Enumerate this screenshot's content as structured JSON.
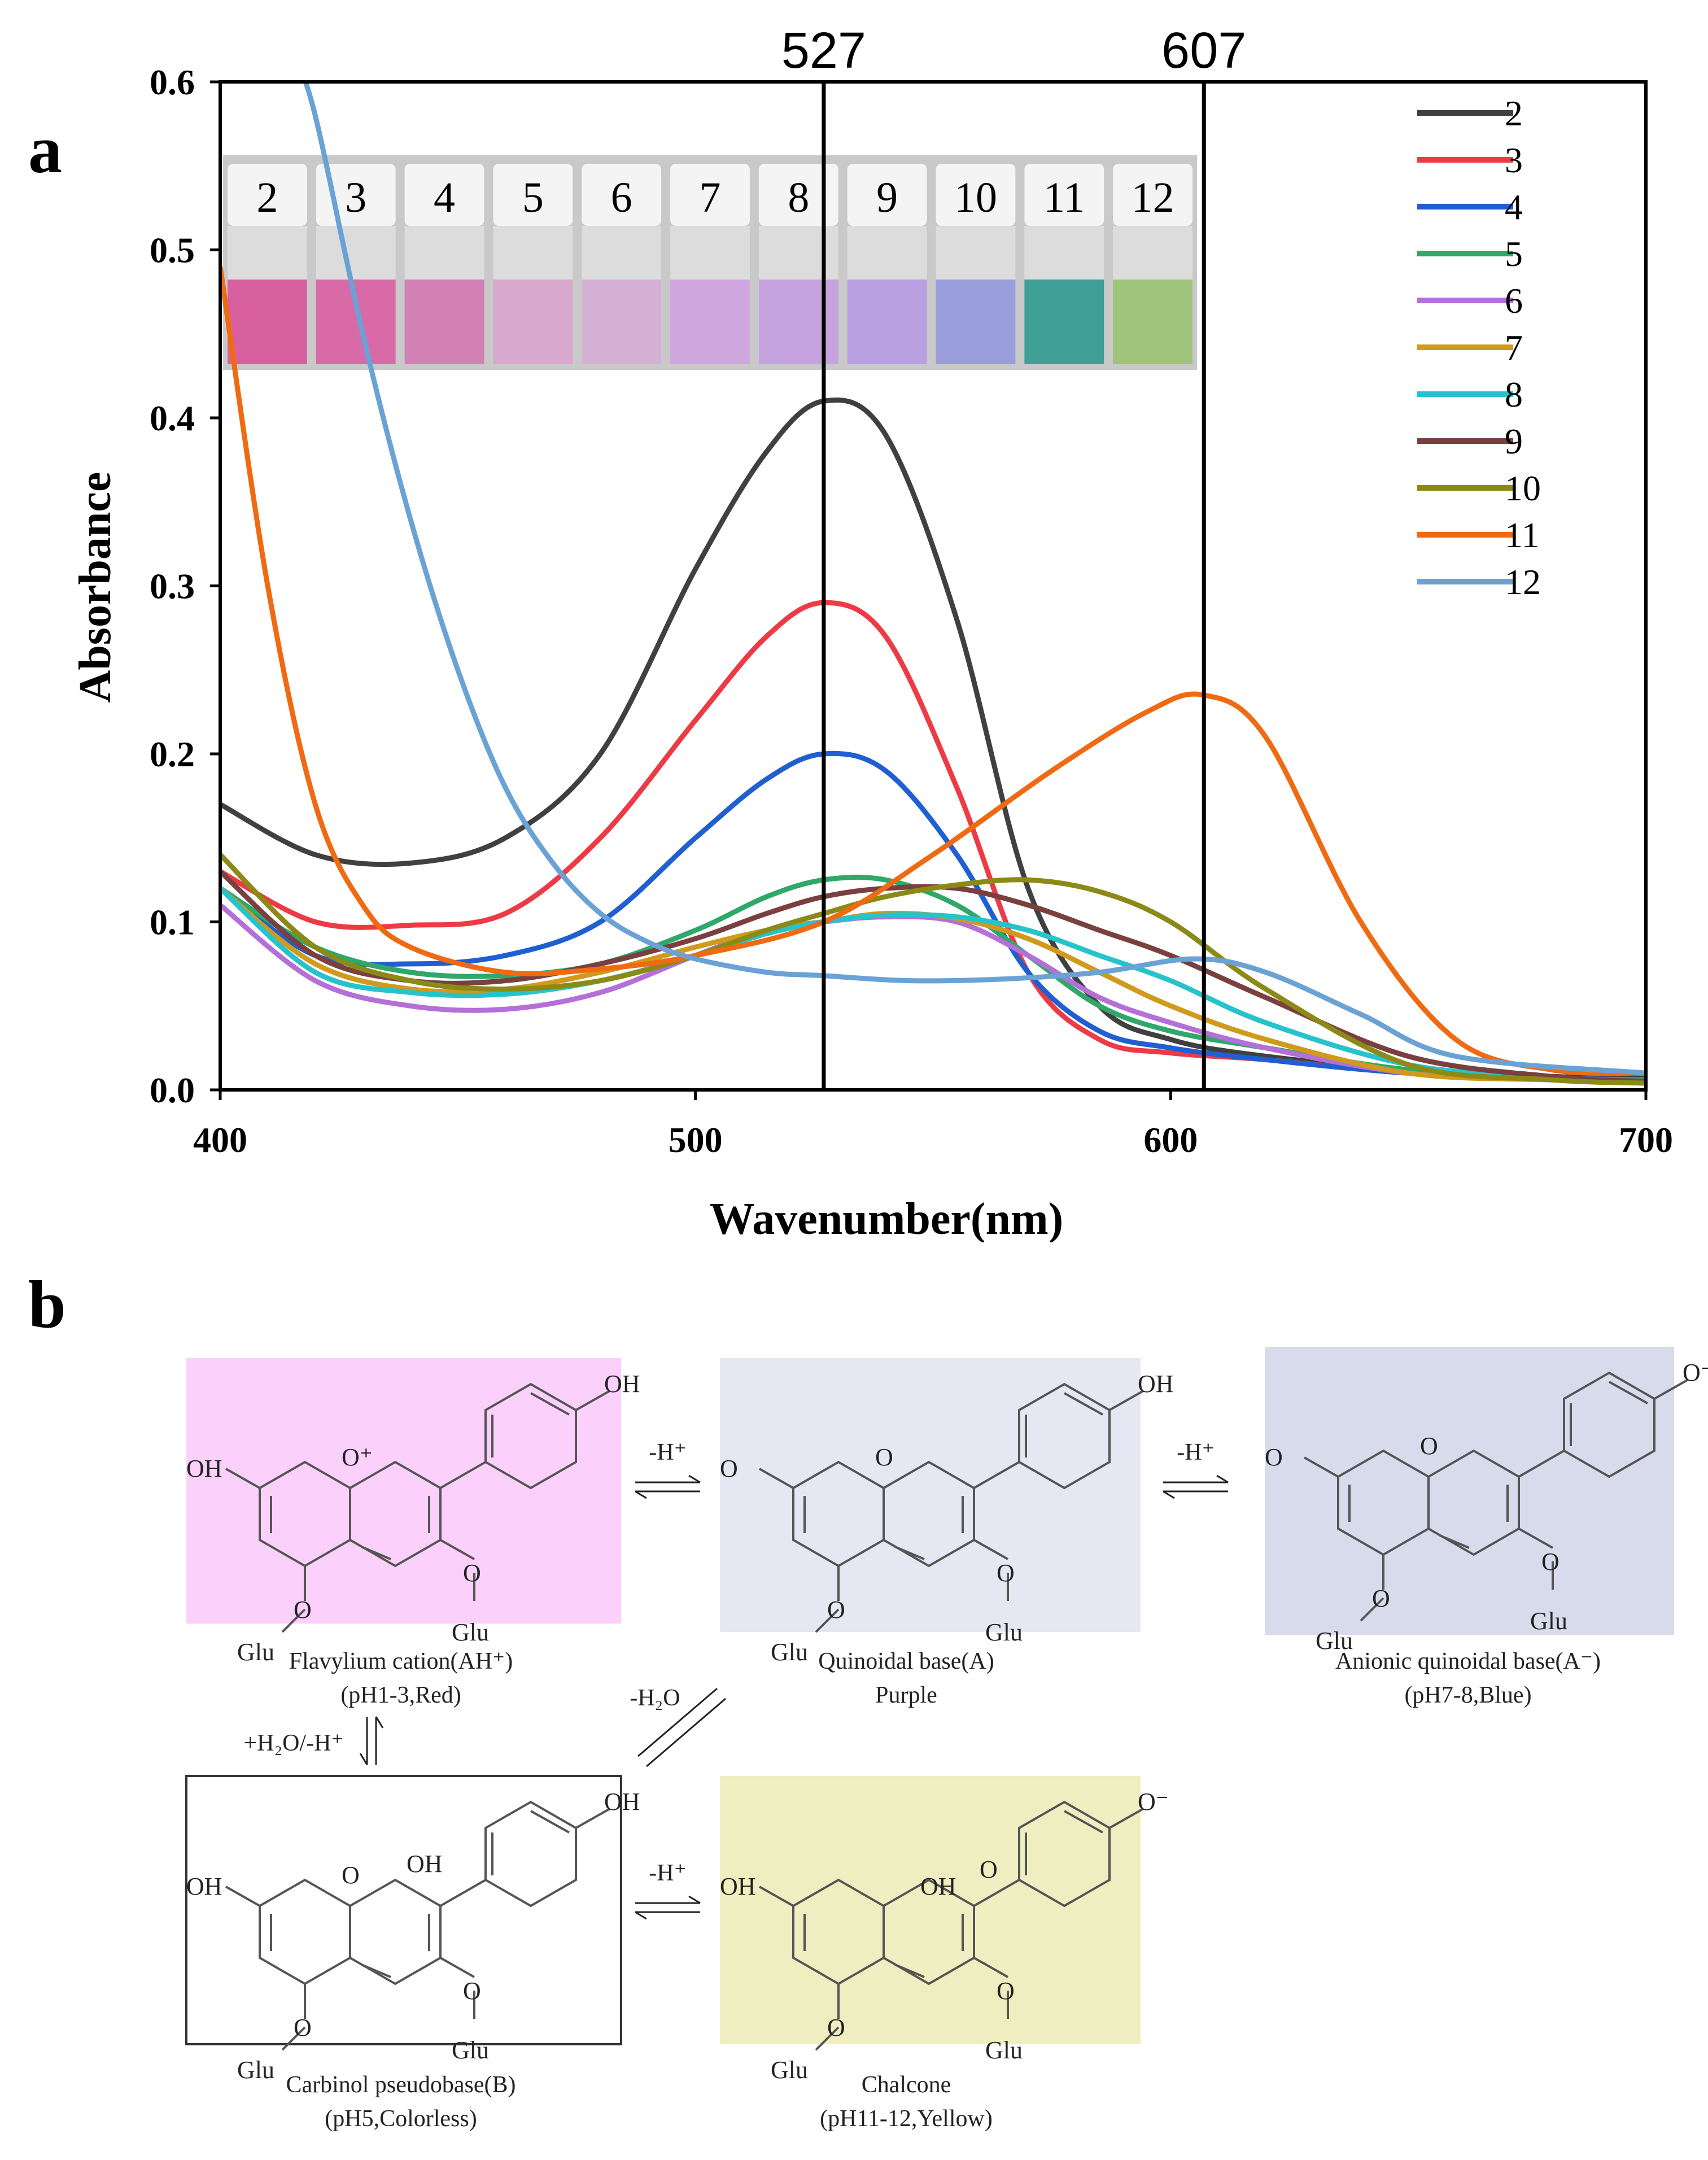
{
  "panels": {
    "a": "a",
    "b": "b"
  },
  "chart_data": {
    "type": "line",
    "title": "",
    "xlabel": "Wavenumber(nm)",
    "ylabel": "Absorbance",
    "xlim": [
      400,
      700
    ],
    "ylim": [
      0,
      0.6
    ],
    "xticks": [
      400,
      500,
      600,
      700
    ],
    "xtick_labels": [
      "400",
      "500",
      "600",
      "700"
    ],
    "yticks": [
      0,
      0.1,
      0.2,
      0.3,
      0.4,
      0.5,
      0.6
    ],
    "ytick_labels": [
      "0.0",
      "0.1",
      "0.2",
      "0.3",
      "0.4",
      "0.5",
      "0.6"
    ],
    "grid": false,
    "legend_position": "top-right",
    "reference_lines": [
      {
        "x": 527,
        "label": "527"
      },
      {
        "x": 607,
        "label": "607"
      }
    ],
    "inset_vials": {
      "labels": [
        "2",
        "3",
        "4",
        "5",
        "6",
        "7",
        "8",
        "9",
        "10",
        "11",
        "12"
      ],
      "colors": [
        "#d9609f",
        "#d96aa8",
        "#d281b5",
        "#d9a8cd",
        "#d6b1d6",
        "#cfa6de",
        "#c6a3de",
        "#b9a0e0",
        "#9a9fdc",
        "#3f9f97",
        "#9fc37b"
      ]
    },
    "series": [
      {
        "name": "2",
        "color": "#404040",
        "x": [
          400,
          420,
          440,
          460,
          480,
          500,
          515,
          527,
          540,
          555,
          570,
          585,
          600,
          620,
          650,
          680,
          700
        ],
        "y": [
          0.17,
          0.14,
          0.135,
          0.15,
          0.2,
          0.31,
          0.38,
          0.41,
          0.39,
          0.28,
          0.12,
          0.05,
          0.03,
          0.02,
          0.012,
          0.008,
          0.007
        ]
      },
      {
        "name": "3",
        "color": "#ee3a45",
        "x": [
          400,
          420,
          440,
          460,
          480,
          500,
          515,
          527,
          540,
          555,
          570,
          585,
          600,
          620,
          650,
          680,
          700
        ],
        "y": [
          0.13,
          0.1,
          0.098,
          0.105,
          0.15,
          0.22,
          0.27,
          0.29,
          0.27,
          0.18,
          0.07,
          0.03,
          0.022,
          0.018,
          0.01,
          0.007,
          0.006
        ]
      },
      {
        "name": "4",
        "color": "#1f5fd1",
        "x": [
          400,
          420,
          440,
          460,
          480,
          500,
          515,
          527,
          540,
          555,
          570,
          585,
          600,
          620,
          650,
          680,
          700
        ],
        "y": [
          0.12,
          0.08,
          0.075,
          0.08,
          0.1,
          0.15,
          0.185,
          0.2,
          0.19,
          0.14,
          0.07,
          0.035,
          0.025,
          0.018,
          0.01,
          0.007,
          0.006
        ]
      },
      {
        "name": "5",
        "color": "#2fa86a",
        "x": [
          400,
          420,
          440,
          460,
          480,
          500,
          515,
          527,
          540,
          555,
          570,
          585,
          600,
          620,
          650,
          680,
          700
        ],
        "y": [
          0.12,
          0.085,
          0.07,
          0.068,
          0.075,
          0.095,
          0.115,
          0.125,
          0.125,
          0.11,
          0.08,
          0.05,
          0.035,
          0.025,
          0.012,
          0.007,
          0.006
        ]
      },
      {
        "name": "6",
        "color": "#b46fd8",
        "x": [
          400,
          420,
          440,
          460,
          480,
          500,
          515,
          527,
          540,
          555,
          570,
          585,
          600,
          620,
          650,
          680,
          700
        ],
        "y": [
          0.11,
          0.065,
          0.05,
          0.048,
          0.058,
          0.08,
          0.095,
          0.1,
          0.103,
          0.1,
          0.08,
          0.055,
          0.04,
          0.025,
          0.01,
          0.006,
          0.005
        ]
      },
      {
        "name": "7",
        "color": "#d09a1c",
        "x": [
          400,
          420,
          440,
          460,
          480,
          500,
          515,
          527,
          540,
          555,
          570,
          585,
          600,
          620,
          650,
          680,
          700
        ],
        "y": [
          0.12,
          0.075,
          0.06,
          0.06,
          0.07,
          0.085,
          0.095,
          0.1,
          0.105,
          0.102,
          0.09,
          0.07,
          0.05,
          0.03,
          0.01,
          0.006,
          0.005
        ]
      },
      {
        "name": "8",
        "color": "#27c3cc",
        "x": [
          400,
          420,
          440,
          460,
          480,
          500,
          515,
          527,
          540,
          555,
          570,
          585,
          600,
          620,
          650,
          680,
          700
        ],
        "y": [
          0.12,
          0.07,
          0.058,
          0.057,
          0.065,
          0.08,
          0.093,
          0.1,
          0.104,
          0.103,
          0.095,
          0.08,
          0.065,
          0.04,
          0.015,
          0.007,
          0.005
        ]
      },
      {
        "name": "9",
        "color": "#7a3f3f",
        "x": [
          400,
          420,
          440,
          460,
          480,
          500,
          515,
          527,
          540,
          555,
          570,
          585,
          600,
          620,
          650,
          680,
          700
        ],
        "y": [
          0.13,
          0.08,
          0.065,
          0.065,
          0.075,
          0.09,
          0.105,
          0.115,
          0.12,
          0.12,
          0.11,
          0.095,
          0.08,
          0.055,
          0.02,
          0.008,
          0.005
        ]
      },
      {
        "name": "10",
        "color": "#8c8a16",
        "x": [
          400,
          420,
          440,
          460,
          480,
          500,
          515,
          527,
          540,
          555,
          570,
          585,
          600,
          620,
          650,
          680,
          700
        ],
        "y": [
          0.14,
          0.085,
          0.065,
          0.06,
          0.065,
          0.08,
          0.095,
          0.105,
          0.115,
          0.122,
          0.125,
          0.118,
          0.1,
          0.06,
          0.015,
          0.006,
          0.004
        ]
      },
      {
        "name": "11",
        "color": "#f06a12",
        "x": [
          400,
          410,
          420,
          430,
          440,
          460,
          480,
          500,
          527,
          550,
          575,
          595,
          607,
          620,
          640,
          660,
          680,
          700
        ],
        "y": [
          0.49,
          0.3,
          0.17,
          0.11,
          0.085,
          0.07,
          0.072,
          0.08,
          0.1,
          0.14,
          0.19,
          0.225,
          0.235,
          0.21,
          0.1,
          0.03,
          0.012,
          0.01
        ]
      },
      {
        "name": "12",
        "color": "#6aa2d6",
        "x": [
          415,
          420,
          430,
          440,
          450,
          460,
          470,
          480,
          490,
          500,
          515,
          527,
          545,
          565,
          585,
          605,
          620,
          640,
          660,
          700
        ],
        "y": [
          0.62,
          0.58,
          0.45,
          0.34,
          0.25,
          0.18,
          0.135,
          0.105,
          0.088,
          0.078,
          0.07,
          0.068,
          0.065,
          0.066,
          0.07,
          0.078,
          0.07,
          0.045,
          0.02,
          0.01
        ]
      }
    ]
  },
  "scheme": {
    "arrows": {
      "a_to_qa": "-H⁺",
      "qa_to_aqb": "-H⁺",
      "flav_to_carb": "+H₂O/-H⁺",
      "carb_to_qa": "-H₂O",
      "carb_to_chal": "-H⁺"
    },
    "species": [
      {
        "id": "flavylium",
        "name": "Flavylium cation(AH⁺)",
        "note": "(pH1-3,Red)",
        "color": "#fbd0fb",
        "labels": {
          "top_oh": "OH",
          "left_oh": "OH",
          "ring_o": "O⁺",
          "o3": "O",
          "o5": "O",
          "glu3": "Glu",
          "glu5": "Glu"
        }
      },
      {
        "id": "quinoidal",
        "name": "Quinoidal base(A)",
        "note": "Purple",
        "color": "#e6e7f2",
        "labels": {
          "top_oh": "OH",
          "left_oh": "O",
          "ring_o": "O",
          "o3": "O",
          "o5": "O",
          "glu3": "Glu",
          "glu5": "Glu"
        }
      },
      {
        "id": "anionic",
        "name": "Anionic quinoidal base(A⁻)",
        "note": "(pH7-8,Blue)",
        "color": "#d8dbec",
        "labels": {
          "top_oh": "O⁻",
          "left_oh": "O",
          "ring_o": "O",
          "o3": "O",
          "o5": "O",
          "glu3": "Glu",
          "glu5": "Glu"
        }
      },
      {
        "id": "carbinol",
        "name": "Carbinol pseudobase(B)",
        "note": "(pH5,Colorless)",
        "color": "#ffffff",
        "labels": {
          "top_oh": "OH",
          "left_oh": "OH",
          "ring_o": "O",
          "c2_oh": "OH",
          "o3": "O",
          "o5": "O",
          "glu3": "Glu",
          "glu5": "Glu"
        }
      },
      {
        "id": "chalcone",
        "name": "Chalcone",
        "note": "(pH11-12,Yellow)",
        "color": "#eeeec0",
        "labels": {
          "top_oh": "O⁻",
          "left_oh": "OH",
          "mid_oh": "OH",
          "keto": "O",
          "o3": "O",
          "o5": "O",
          "glu3": "Glu",
          "glu5": "Glu"
        }
      }
    ]
  }
}
